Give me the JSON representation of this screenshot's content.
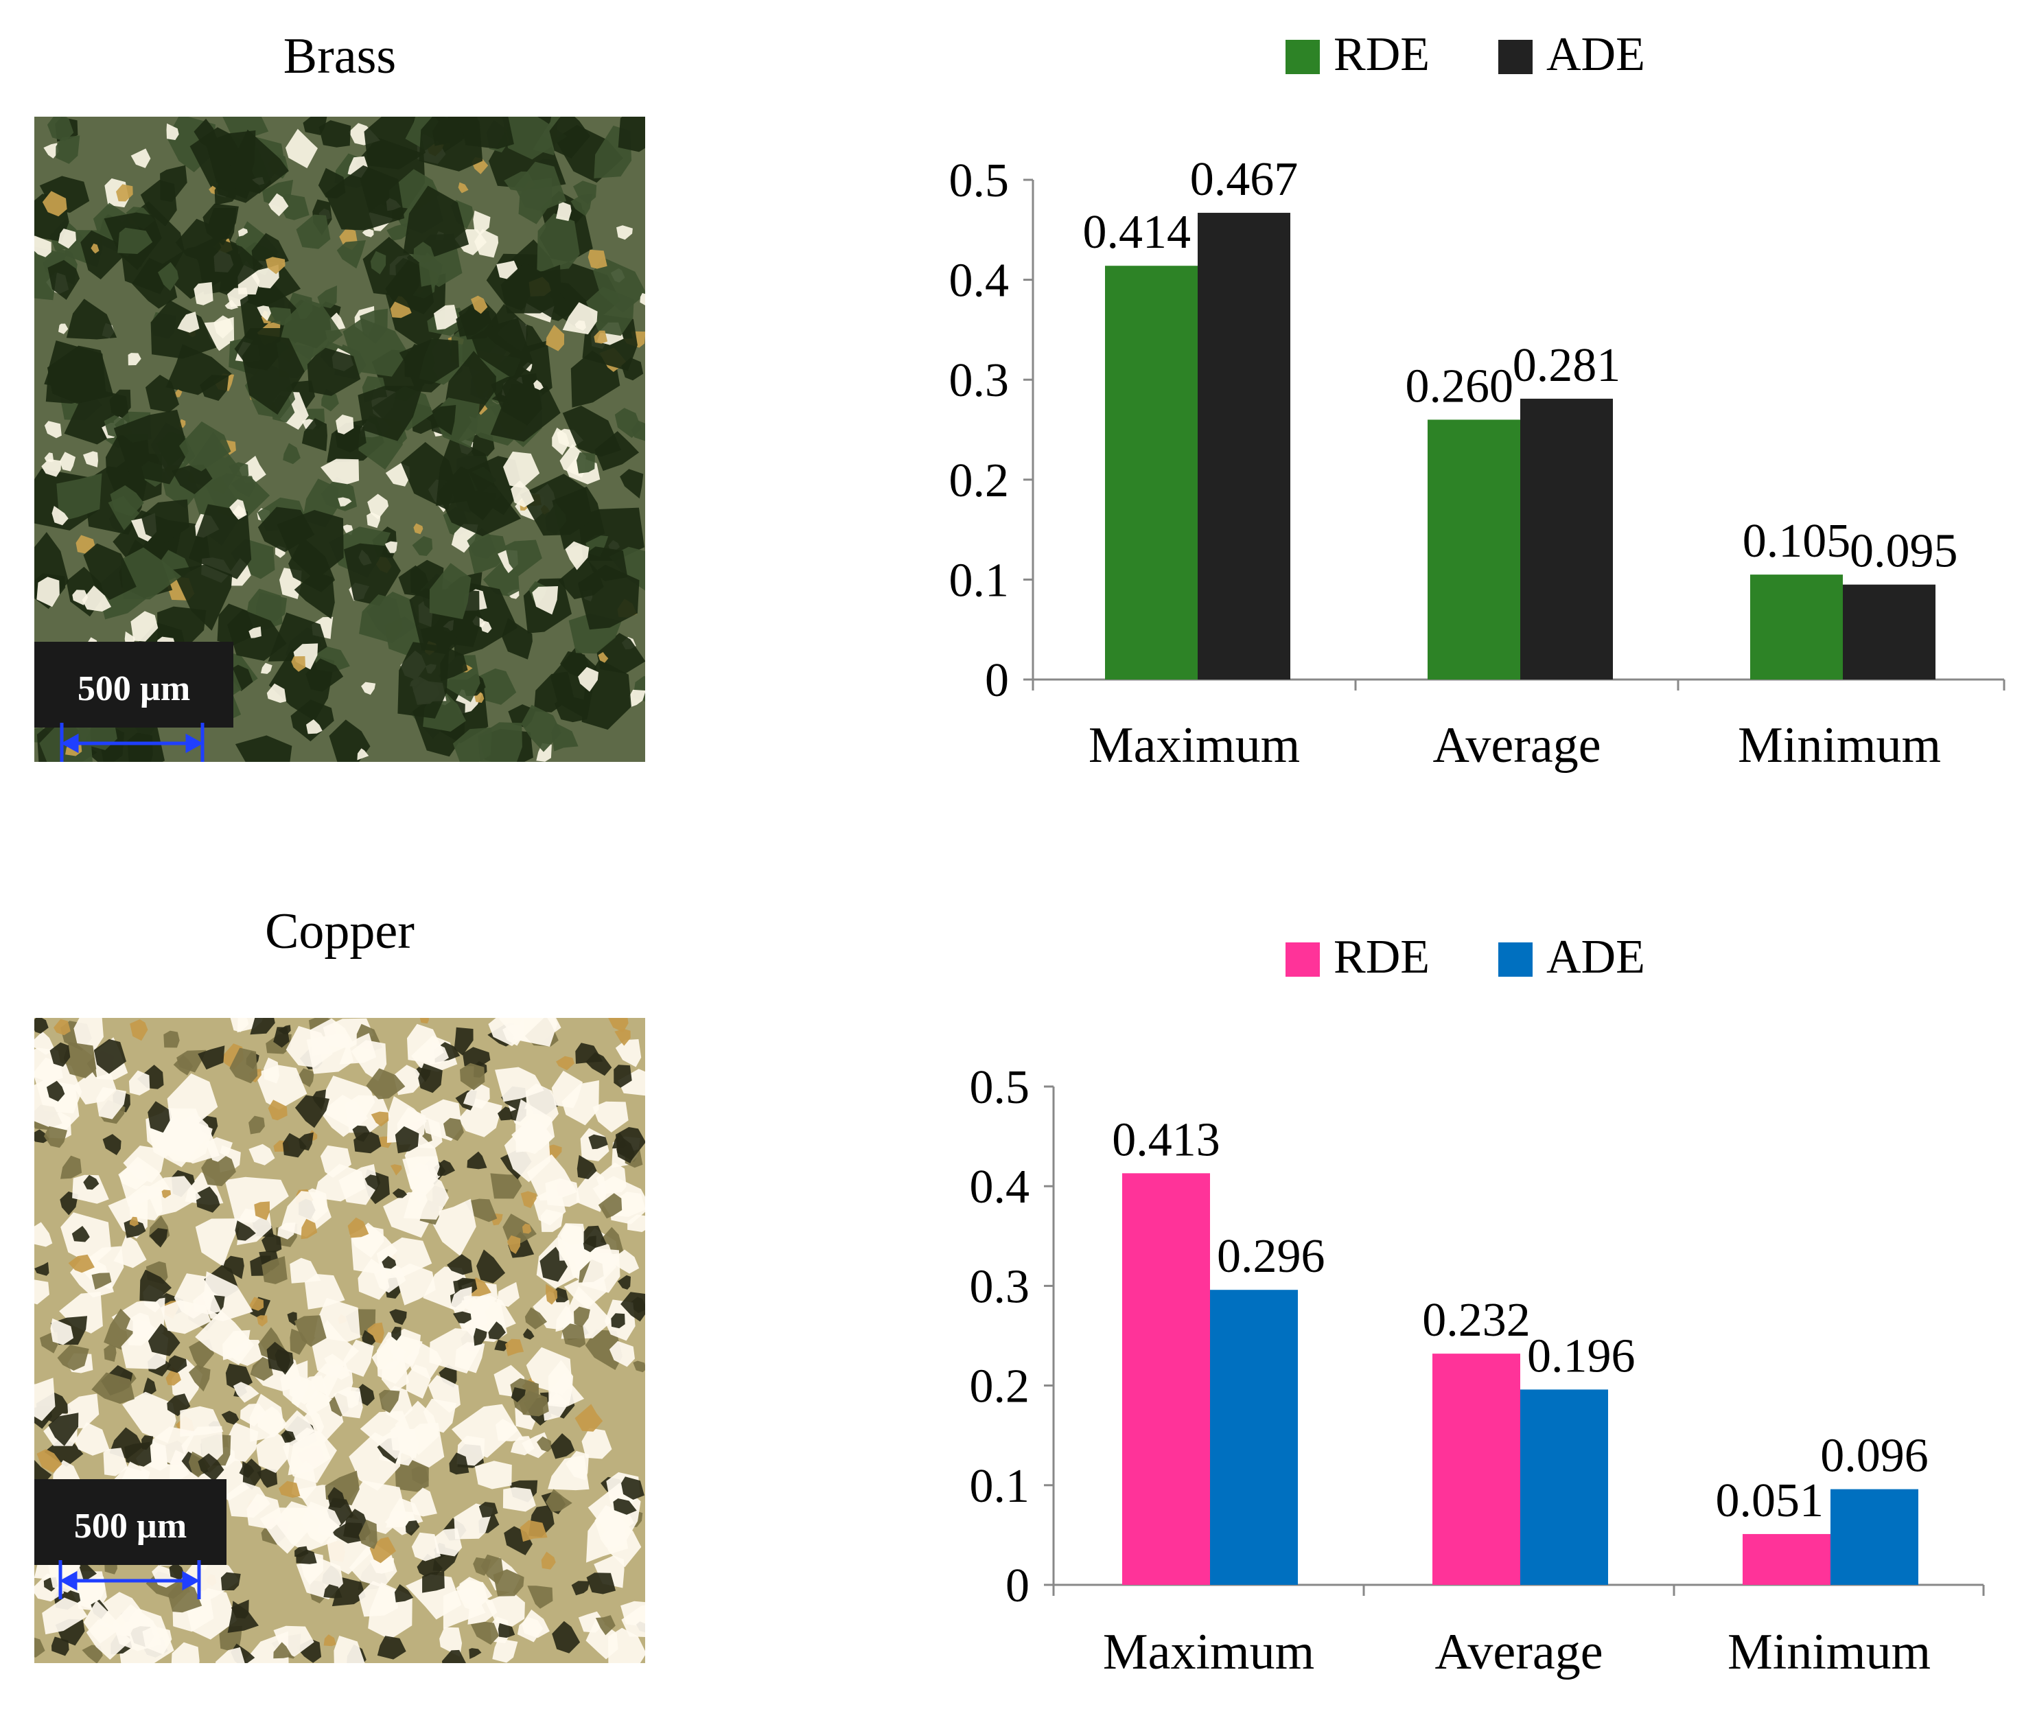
{
  "panels": [
    {
      "id": "brass",
      "label": "Brass",
      "scale_bar": "500 µm",
      "micro_palette": {
        "base": "#5e6a48",
        "dark": "#1c2a12",
        "mid": "#3e5230",
        "light": "#fbf6e6",
        "warm": "#c9a24e"
      },
      "chart_data": {
        "type": "bar",
        "categories": [
          "Maximum",
          "Average",
          "Minimum"
        ],
        "series": [
          {
            "name": "RDE",
            "color": "#2d8326",
            "values": [
              0.414,
              0.26,
              0.105
            ],
            "labels": [
              "0.414",
              "0.260",
              "0.105"
            ]
          },
          {
            "name": "ADE",
            "color": "#222222",
            "values": [
              0.467,
              0.281,
              0.095
            ],
            "labels": [
              "0.467",
              "0.281",
              "0.095"
            ]
          }
        ],
        "ylim": [
          0,
          0.5
        ],
        "yticks": [
          "0",
          "0.1",
          "0.2",
          "0.3",
          "0.4",
          "0.5"
        ],
        "legend": "top"
      }
    },
    {
      "id": "copper",
      "label": "Copper",
      "scale_bar": "500 µm",
      "micro_palette": {
        "base": "#bdb07e",
        "dark": "#2a2a18",
        "mid": "#7d7448",
        "light": "#fffaf0",
        "warm": "#c59a4a"
      },
      "chart_data": {
        "type": "bar",
        "categories": [
          "Maximum",
          "Average",
          "Minimum"
        ],
        "series": [
          {
            "name": "RDE",
            "color": "#ff3399",
            "values": [
              0.413,
              0.232,
              0.051
            ],
            "labels": [
              "0.413",
              "0.232",
              "0.051"
            ]
          },
          {
            "name": "ADE",
            "color": "#0070c0",
            "values": [
              0.296,
              0.196,
              0.096
            ],
            "labels": [
              "0.296",
              "0.196",
              "0.096"
            ]
          }
        ],
        "ylim": [
          0,
          0.5
        ],
        "yticks": [
          "0",
          "0.1",
          "0.2",
          "0.3",
          "0.4",
          "0.5"
        ],
        "legend": "top"
      }
    }
  ]
}
